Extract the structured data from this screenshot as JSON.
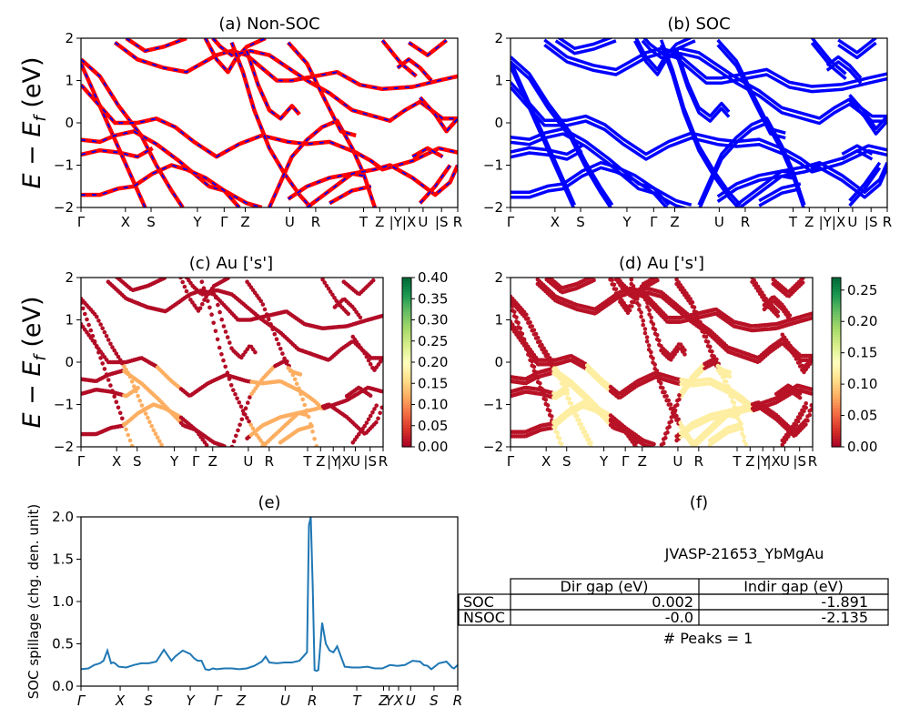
{
  "figure": {
    "ylabel_energy": "E − E_f (eV)",
    "kpath_labels": [
      "Γ",
      "X",
      "S",
      "Y",
      "Γ",
      "Z",
      "U",
      "R",
      "T",
      "Z",
      "|Y",
      "|X",
      "U",
      "|S",
      "R"
    ],
    "kpath_labels_e": [
      "Γ",
      "X",
      "S",
      "Y",
      "Γ",
      "Z",
      "U",
      "R",
      "T",
      "Z",
      "Y",
      "X",
      "U",
      "S",
      "R"
    ]
  },
  "panel_a": {
    "title": "(a) Non-SOC"
  },
  "panel_b": {
    "title": "(b) SOC"
  },
  "panel_c": {
    "title": "(c)  Au ['s']",
    "colorbar_ticks": [
      "0.00",
      "0.05",
      "0.10",
      "0.15",
      "0.20",
      "0.25",
      "0.30",
      "0.35",
      "0.40"
    ]
  },
  "panel_d": {
    "title": "(d) Au ['s']",
    "colorbar_ticks": [
      "0.00",
      "0.05",
      "0.10",
      "0.15",
      "0.20",
      "0.25"
    ]
  },
  "panel_e": {
    "title": "(e)",
    "ylabel": "SOC spillage (chg. den. unit)"
  },
  "panel_f": {
    "title": "(f)",
    "material": "JVASP-21653_YbMgAu",
    "table": {
      "col_headers": [
        "Dir gap (eV)",
        "Indir gap (eV)"
      ],
      "rows": [
        {
          "label": "SOC",
          "dir": "0.002",
          "indir": "-1.891"
        },
        {
          "label": "NSOC",
          "dir": "-0.0",
          "indir": "-2.135"
        }
      ]
    },
    "peaks": "# Peaks = 1"
  },
  "chart_data": [
    {
      "type": "line",
      "title": "(a) Non-SOC",
      "ylabel": "E − E_f (eV)",
      "ylim": [
        -2,
        2
      ],
      "yticks": [
        -2,
        -1,
        0,
        1,
        2
      ],
      "x_ticks": [
        "Γ",
        "X",
        "S",
        "Y",
        "Γ",
        "Z",
        "U",
        "R",
        "T",
        "Z",
        "|Y",
        "|X",
        "U",
        "|S",
        "R"
      ],
      "x_tick_pos": [
        0,
        0.118,
        0.186,
        0.309,
        0.38,
        0.436,
        0.554,
        0.623,
        0.75,
        0.793,
        0.835,
        0.871,
        0.908,
        0.957,
        1.0
      ],
      "colors": [
        "#ff0000",
        "#0000ff"
      ],
      "series": [
        {
          "points": [
            [
              0,
              1.5
            ],
            [
              0.05,
              1.1
            ],
            [
              0.1,
              0.4
            ],
            [
              0.16,
              -0.3
            ],
            [
              0.2,
              -1.0
            ],
            [
              0.24,
              -1.6
            ],
            [
              0.27,
              -2.0
            ]
          ]
        },
        {
          "points": [
            [
              0,
              1.4
            ],
            [
              0.04,
              0.6
            ],
            [
              0.09,
              -0.4
            ],
            [
              0.14,
              -1.4
            ],
            [
              0.17,
              -2.0
            ]
          ]
        },
        {
          "points": [
            [
              0,
              0.9
            ],
            [
              0.05,
              0.4
            ],
            [
              0.09,
              0.0
            ],
            [
              0.15,
              0.0
            ],
            [
              0.2,
              0.1
            ],
            [
              0.25,
              -0.1
            ],
            [
              0.3,
              -0.45
            ],
            [
              0.36,
              -0.8
            ],
            [
              0.42,
              -0.5
            ],
            [
              0.48,
              -0.3
            ],
            [
              0.55,
              -0.45
            ],
            [
              0.6,
              -0.5
            ],
            [
              0.66,
              -0.45
            ],
            [
              0.73,
              -0.7
            ],
            [
              0.77,
              -0.9
            ],
            [
              0.8,
              -1.1
            ],
            [
              0.88,
              -0.9
            ],
            [
              0.95,
              -0.6
            ],
            [
              1.0,
              -0.7
            ]
          ]
        },
        {
          "points": [
            [
              0,
              -0.4
            ],
            [
              0.05,
              -0.45
            ],
            [
              0.09,
              -0.3
            ],
            [
              0.14,
              -0.2
            ],
            [
              0.2,
              -0.5
            ],
            [
              0.26,
              -0.9
            ],
            [
              0.3,
              -1.2
            ],
            [
              0.34,
              -1.5
            ],
            [
              0.38,
              -1.6
            ],
            [
              0.44,
              -1.9
            ],
            [
              0.48,
              -2.0
            ]
          ]
        },
        {
          "points": [
            [
              0,
              -0.75
            ],
            [
              0.05,
              -0.65
            ],
            [
              0.1,
              -0.7
            ],
            [
              0.15,
              -0.8
            ],
            [
              0.19,
              -0.6
            ]
          ]
        },
        {
          "points": [
            [
              0,
              -1.7
            ],
            [
              0.05,
              -1.7
            ],
            [
              0.1,
              -1.55
            ],
            [
              0.14,
              -1.5
            ],
            [
              0.19,
              -1.2
            ],
            [
              0.24,
              -1.0
            ],
            [
              0.28,
              -1.1
            ],
            [
              0.33,
              -1.3
            ],
            [
              0.38,
              -1.6
            ],
            [
              0.42,
              -2.0
            ]
          ]
        },
        {
          "points": [
            [
              0.09,
              1.9
            ],
            [
              0.15,
              1.5
            ],
            [
              0.22,
              1.3
            ],
            [
              0.28,
              1.2
            ],
            [
              0.32,
              1.4
            ],
            [
              0.36,
              1.6
            ],
            [
              0.4,
              1.7
            ],
            [
              0.44,
              1.6
            ],
            [
              0.48,
              1.3
            ],
            [
              0.52,
              1.0
            ],
            [
              0.56,
              1.0
            ],
            [
              0.62,
              1.1
            ],
            [
              0.68,
              1.2
            ],
            [
              0.74,
              0.9
            ],
            [
              0.8,
              0.8
            ],
            [
              0.88,
              0.85
            ],
            [
              0.95,
              1.0
            ],
            [
              1.0,
              1.1
            ]
          ]
        },
        {
          "points": [
            [
              0.12,
              2.0
            ],
            [
              0.17,
              1.7
            ],
            [
              0.22,
              1.8
            ],
            [
              0.28,
              2.0
            ]
          ]
        },
        {
          "points": [
            [
              0.33,
              2.0
            ],
            [
              0.36,
              1.5
            ],
            [
              0.39,
              1.2
            ],
            [
              0.41,
              1.5
            ],
            [
              0.44,
              1.8
            ],
            [
              0.49,
              2.0
            ]
          ]
        },
        {
          "points": [
            [
              0.35,
              2.0
            ],
            [
              0.37,
              1.8
            ],
            [
              0.4,
              1.6
            ],
            [
              0.45,
              1.7
            ],
            [
              0.5,
              1.6
            ],
            [
              0.55,
              1.3
            ],
            [
              0.6,
              1.0
            ],
            [
              0.66,
              0.7
            ],
            [
              0.72,
              0.3
            ],
            [
              0.76,
              0.2
            ],
            [
              0.82,
              0.05
            ],
            [
              0.86,
              0.3
            ],
            [
              0.9,
              0.5
            ],
            [
              0.96,
              0.1
            ],
            [
              1.0,
              0.1
            ]
          ]
        },
        {
          "points": [
            [
              0.4,
              1.9
            ],
            [
              0.43,
              1.2
            ],
            [
              0.46,
              0.3
            ],
            [
              0.5,
              -0.6
            ],
            [
              0.54,
              -1.2
            ],
            [
              0.58,
              -1.7
            ],
            [
              0.61,
              -2.0
            ]
          ]
        },
        {
          "points": [
            [
              0.44,
              1.7
            ],
            [
              0.47,
              0.9
            ],
            [
              0.5,
              0.3
            ],
            [
              0.53,
              0.1
            ],
            [
              0.56,
              0.4
            ],
            [
              0.58,
              0.2
            ]
          ]
        },
        {
          "points": [
            [
              0.5,
              -2.0
            ],
            [
              0.53,
              -1.4
            ],
            [
              0.56,
              -0.8
            ],
            [
              0.6,
              -0.4
            ],
            [
              0.64,
              -0.1
            ],
            [
              0.68,
              0.05
            ],
            [
              0.72,
              -0.6
            ],
            [
              0.75,
              -1.2
            ],
            [
              0.78,
              -2.0
            ]
          ]
        },
        {
          "points": [
            [
              0.55,
              1.9
            ],
            [
              0.6,
              1.4
            ],
            [
              0.65,
              0.5
            ],
            [
              0.69,
              -0.2
            ],
            [
              0.73,
              -0.3
            ]
          ]
        },
        {
          "points": [
            [
              0.55,
              -1.8
            ],
            [
              0.6,
              -1.5
            ],
            [
              0.66,
              -1.3
            ],
            [
              0.72,
              -1.2
            ],
            [
              0.75,
              -1.25
            ]
          ]
        },
        {
          "points": [
            [
              0.6,
              -2.0
            ],
            [
              0.66,
              -1.6
            ],
            [
              0.72,
              -1.2
            ],
            [
              0.78,
              -1.1
            ],
            [
              0.82,
              -1.0
            ],
            [
              0.88,
              -1.3
            ],
            [
              0.94,
              -1.7
            ],
            [
              0.98,
              -1.4
            ],
            [
              1.0,
              -1.0
            ]
          ]
        },
        {
          "points": [
            [
              0.66,
              -1.9
            ],
            [
              0.72,
              -1.6
            ],
            [
              0.77,
              -1.5
            ]
          ]
        },
        {
          "points": [
            [
              0.8,
              1.95
            ],
            [
              0.85,
              1.4
            ],
            [
              0.89,
              1.1
            ]
          ]
        },
        {
          "points": [
            [
              0.84,
              1.3
            ],
            [
              0.87,
              1.5
            ],
            [
              0.9,
              1.3
            ],
            [
              0.93,
              1.0
            ]
          ]
        },
        {
          "points": [
            [
              0.87,
              1.9
            ],
            [
              0.92,
              1.6
            ],
            [
              0.97,
              1.95
            ]
          ]
        },
        {
          "points": [
            [
              0.9,
              0.6
            ],
            [
              0.94,
              0.2
            ],
            [
              0.97,
              -0.2
            ],
            [
              1.0,
              0.1
            ]
          ]
        },
        {
          "points": [
            [
              0.88,
              -0.8
            ],
            [
              0.92,
              -0.6
            ],
            [
              0.96,
              -0.8
            ]
          ]
        },
        {
          "points": [
            [
              0.9,
              -1.9
            ],
            [
              0.94,
              -1.5
            ],
            [
              0.98,
              -1.0
            ]
          ]
        }
      ]
    },
    {
      "type": "line",
      "title": "(b) SOC",
      "ylabel": "",
      "ylim": [
        -2,
        2
      ],
      "yticks": [
        -2,
        -1,
        0,
        1,
        2
      ],
      "x_ticks": [
        "Γ",
        "X",
        "S",
        "Y",
        "Γ",
        "Z",
        "U",
        "R",
        "T",
        "Z",
        "|Y",
        "|X",
        "U",
        "|S",
        "R"
      ],
      "x_tick_pos": [
        0,
        0.118,
        0.186,
        0.309,
        0.38,
        0.436,
        0.554,
        0.623,
        0.75,
        0.793,
        0.835,
        0.871,
        0.908,
        0.957,
        1.0
      ],
      "colors": [
        "#0000ff"
      ],
      "same_bands_as": "(a)",
      "band_split": 0.06
    },
    {
      "type": "scatter",
      "title": "(c)  Au ['s']",
      "ylabel": "E − E_f (eV)",
      "ylim": [
        -2,
        2
      ],
      "yticks": [
        -2,
        -1,
        0,
        1,
        2
      ],
      "x_ticks": [
        "Γ",
        "X",
        "S",
        "Y",
        "Γ",
        "Z",
        "U",
        "R",
        "T",
        "Z",
        "|Y",
        "|X",
        "U",
        "|S",
        "R"
      ],
      "colorbar": {
        "cmap": "RdYlGn",
        "range": [
          0.0,
          0.4
        ]
      },
      "colored_by": "Au s projection (dark red = low)",
      "highlight_weight": 0.12,
      "highlight_x_ranges": [
        [
          0.14,
          0.33
        ],
        [
          0.56,
          0.8
        ]
      ]
    },
    {
      "type": "scatter",
      "title": "(d) Au ['s']",
      "ylabel": "",
      "ylim": [
        -2,
        2
      ],
      "yticks": [
        -2,
        -1,
        0,
        1,
        2
      ],
      "x_ticks": [
        "Γ",
        "X",
        "S",
        "Y",
        "Γ",
        "Z",
        "U",
        "R",
        "T",
        "Z",
        "|Y",
        "|X",
        "U",
        "|S",
        "R"
      ],
      "colorbar": {
        "cmap": "RdYlGn",
        "range": [
          0.0,
          0.27
        ]
      },
      "colored_by": "Au s projection (dark red = low)",
      "highlight_weight": 0.12,
      "highlight_x_ranges": [
        [
          0.14,
          0.33
        ],
        [
          0.56,
          0.8
        ]
      ]
    },
    {
      "type": "line",
      "title": "(e)",
      "ylabel": "SOC spillage (chg. den. unit)",
      "ylim": [
        0,
        2.0
      ],
      "yticks": [
        0.0,
        0.5,
        1.0,
        1.5,
        2.0
      ],
      "x_ticks": [
        "Γ",
        "X",
        "S",
        "Y",
        "Γ",
        "Z",
        "U",
        "R",
        "T",
        "Z",
        "Y",
        "X",
        "U",
        "S",
        "R"
      ],
      "x_tick_pos": [
        0,
        0.104,
        0.179,
        0.29,
        0.363,
        0.425,
        0.542,
        0.614,
        0.732,
        0.803,
        0.818,
        0.843,
        0.875,
        0.937,
        1.0
      ],
      "color": "#1f77b4",
      "x": [
        0.0,
        0.02,
        0.035,
        0.05,
        0.06,
        0.07,
        0.08,
        0.085,
        0.09,
        0.1,
        0.12,
        0.14,
        0.16,
        0.18,
        0.2,
        0.22,
        0.24,
        0.25,
        0.27,
        0.29,
        0.3,
        0.31,
        0.32,
        0.33,
        0.34,
        0.35,
        0.36,
        0.38,
        0.4,
        0.42,
        0.44,
        0.46,
        0.48,
        0.49,
        0.5,
        0.52,
        0.54,
        0.56,
        0.58,
        0.6,
        0.605,
        0.61,
        0.615,
        0.62,
        0.625,
        0.63,
        0.64,
        0.65,
        0.66,
        0.67,
        0.68,
        0.7,
        0.72,
        0.74,
        0.76,
        0.78,
        0.8,
        0.82,
        0.84,
        0.86,
        0.88,
        0.9,
        0.91,
        0.92,
        0.93,
        0.95,
        0.97,
        0.985,
        0.99,
        1.0
      ],
      "y": [
        0.2,
        0.21,
        0.25,
        0.27,
        0.3,
        0.42,
        0.27,
        0.28,
        0.27,
        0.23,
        0.22,
        0.25,
        0.27,
        0.27,
        0.29,
        0.43,
        0.3,
        0.35,
        0.42,
        0.38,
        0.33,
        0.3,
        0.3,
        0.2,
        0.19,
        0.21,
        0.2,
        0.21,
        0.21,
        0.2,
        0.21,
        0.24,
        0.29,
        0.35,
        0.28,
        0.27,
        0.28,
        0.28,
        0.3,
        0.4,
        1.9,
        2.0,
        1.2,
        0.19,
        0.18,
        0.19,
        0.75,
        0.5,
        0.42,
        0.4,
        0.47,
        0.23,
        0.22,
        0.22,
        0.23,
        0.21,
        0.21,
        0.25,
        0.24,
        0.25,
        0.3,
        0.29,
        0.25,
        0.24,
        0.2,
        0.27,
        0.29,
        0.22,
        0.21,
        0.25
      ]
    }
  ]
}
